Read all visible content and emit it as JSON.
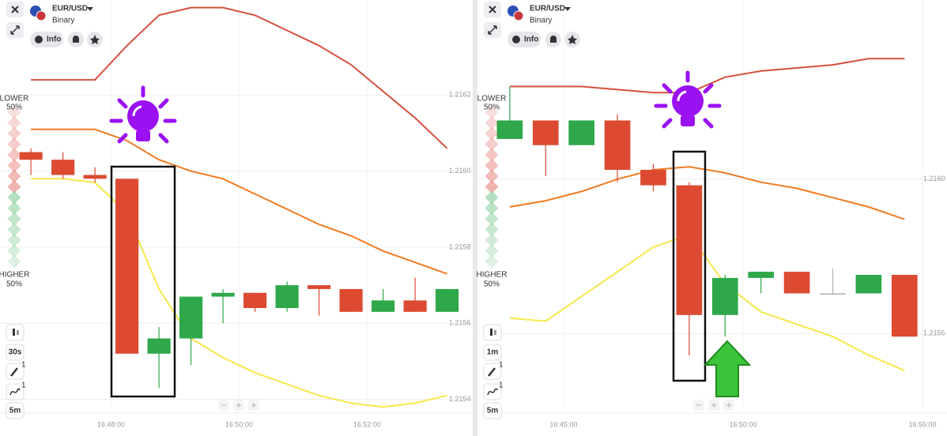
{
  "chart_data": [
    {
      "type": "candlestick",
      "asset": "EUR/USD",
      "mode": "Binary",
      "info_label": "Info",
      "lower_label": "LOWER",
      "lower_pct": "50%",
      "higher_label": "HIGHER",
      "higher_pct": "50%",
      "timeframe": "30s",
      "chart_interval": "5m",
      "badges": [
        "1",
        "1"
      ],
      "up_color": "#2ea84a",
      "down_color": "#dc4a32",
      "flat_color": "#b0b0b0",
      "grid": true,
      "x": [
        "16:46:45",
        "16:47:15",
        "16:47:45",
        "16:48:15",
        "16:48:45",
        "16:49:15",
        "16:49:45",
        "16:50:15",
        "16:50:45",
        "16:51:15",
        "16:51:45",
        "16:52:15",
        "16:52:45",
        "16:53:15"
      ],
      "open": [
        1.21605,
        1.21603,
        1.21599,
        1.21598,
        1.21552,
        1.21556,
        1.21567,
        1.21568,
        1.21564,
        1.2157,
        1.21569,
        1.21563,
        1.21566,
        1.21563
      ],
      "high": [
        1.21606,
        1.21605,
        1.21601,
        1.21598,
        1.21559,
        1.21567,
        1.21569,
        1.21568,
        1.21571,
        1.2157,
        1.21569,
        1.21569,
        1.21572,
        1.21569
      ],
      "low": [
        1.21599,
        1.21598,
        1.21597,
        1.21552,
        1.21543,
        1.21549,
        1.2156,
        1.21563,
        1.21563,
        1.21562,
        1.21563,
        1.21563,
        1.21563,
        1.21563
      ],
      "close": [
        1.21603,
        1.21599,
        1.21598,
        1.21552,
        1.21556,
        1.21567,
        1.21568,
        1.21564,
        1.2157,
        1.21569,
        1.21563,
        1.21566,
        1.21563,
        1.21569
      ],
      "indicators": [
        {
          "color": "#d5503e",
          "values": [
            1.21624,
            1.21624,
            1.21624,
            1.21633,
            1.21641,
            1.21643,
            1.21643,
            1.21641,
            1.21637,
            1.21633,
            1.21628,
            1.21621,
            1.21614,
            1.21606
          ]
        },
        {
          "color": "#f07b22",
          "values": [
            1.21611,
            1.21611,
            1.21611,
            1.21608,
            1.21603,
            1.216,
            1.21598,
            1.21594,
            1.2159,
            1.21586,
            1.21583,
            1.21579,
            1.21576,
            1.21573
          ]
        },
        {
          "color": "#f4e84a",
          "values": [
            1.21598,
            1.21598,
            1.21597,
            1.21589,
            1.21569,
            1.21556,
            1.21551,
            1.21547,
            1.21544,
            1.21541,
            1.21539,
            1.21538,
            1.21539,
            1.21541
          ]
        }
      ],
      "xlim": [
        "16:46:16",
        "16:53:39"
      ],
      "xticks": [
        "16:48:00",
        "16:50:00",
        "16:52:00"
      ],
      "ylim": [
        1.21537,
        1.21645
      ],
      "yticks": [
        1.2162,
        {
          "value": 1.216,
          "label": "1.2160"
        },
        1.2158,
        1.2156,
        1.2154
      ]
    },
    {
      "type": "candlestick",
      "asset": "EUR/USD",
      "mode": "Binary",
      "info_label": "Info",
      "lower_label": "LOWER",
      "lower_pct": "50%",
      "higher_label": "HIGHER",
      "higher_pct": "50%",
      "timeframe": "1m",
      "chart_interval": "5m",
      "badges": [
        "1",
        "1"
      ],
      "up_color": "#2ea84a",
      "down_color": "#dc4a32",
      "flat_color": "#b0b0b0",
      "grid": true,
      "x": [
        "16:43:30",
        "16:44:30",
        "16:45:30",
        "16:46:30",
        "16:47:30",
        "16:48:30",
        "16:49:30",
        "16:50:30",
        "16:51:30",
        "16:52:30",
        "16:53:30",
        "16:54:30"
      ],
      "open": [
        1.21613,
        1.21619,
        1.21611,
        1.21619,
        1.21603,
        1.21598,
        1.21556,
        1.21568,
        1.2157,
        1.21563,
        1.21563,
        1.21569
      ],
      "high": [
        1.2163,
        1.21619,
        1.21619,
        1.21621,
        1.21605,
        1.21599,
        1.21569,
        1.2157,
        1.2157,
        1.21571,
        1.21569,
        1.21569
      ],
      "low": [
        1.21613,
        1.21601,
        1.21611,
        1.21599,
        1.21596,
        1.21543,
        1.21549,
        1.21563,
        1.21563,
        1.21563,
        1.21563,
        1.21549
      ],
      "close": [
        1.21619,
        1.21611,
        1.21619,
        1.21603,
        1.21598,
        1.21556,
        1.21568,
        1.2157,
        1.21563,
        1.21563,
        1.21569,
        1.21549
      ],
      "indicators": [
        {
          "color": "#d5503e",
          "values": [
            1.2163,
            1.2163,
            1.2163,
            1.21629,
            1.21628,
            1.21628,
            1.21633,
            1.21635,
            1.21636,
            1.21637,
            1.21639,
            1.21639
          ]
        },
        {
          "color": "#f07b22",
          "values": [
            1.21591,
            1.21593,
            1.21596,
            1.216,
            1.21603,
            1.21604,
            1.21602,
            1.21599,
            1.21597,
            1.21594,
            1.21591,
            1.21587
          ]
        },
        {
          "color": "#f4e84a",
          "values": [
            1.21555,
            1.21554,
            1.21562,
            1.2157,
            1.21578,
            1.21582,
            1.21566,
            1.21557,
            1.21553,
            1.21549,
            1.21543,
            1.21538
          ]
        }
      ],
      "xlim": [
        "16:42:36",
        "16:55:41"
      ],
      "xticks": [
        "16:45:00",
        "16:50:00",
        "16:55:00"
      ],
      "ylim": [
        1.21525,
        1.21658
      ],
      "yticks": [
        {
          "value": 1.216,
          "label": "1.2160"
        },
        1.2155
      ]
    }
  ]
}
